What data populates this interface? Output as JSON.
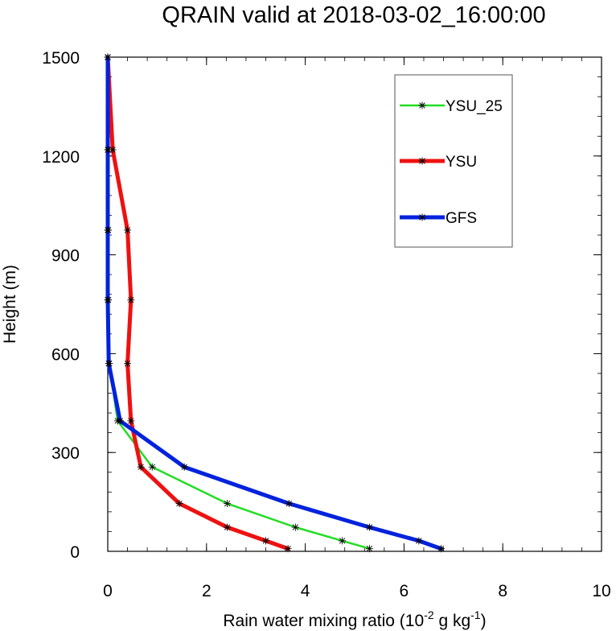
{
  "chart_data": {
    "type": "line",
    "title": "QRAIN valid at 2018-03-02_16:00:00",
    "xlabel_main": "Rain water mixing ratio (10",
    "xlabel_exp1": "-2",
    "xlabel_mid": " g kg",
    "xlabel_exp2": "-1",
    "xlabel_end": ")",
    "ylabel": "Height (m)",
    "xlim": [
      0,
      10
    ],
    "ylim": [
      0,
      1500
    ],
    "xticks": [
      0,
      2,
      4,
      6,
      8,
      10
    ],
    "yticks": [
      0,
      300,
      600,
      900,
      1200,
      1500
    ],
    "xtick_labels": [
      "0",
      "2",
      "4",
      "6",
      "8",
      "10"
    ],
    "ytick_labels": [
      "0",
      "300",
      "600",
      "900",
      "1200",
      "1500"
    ],
    "grid": false,
    "legend_position": "top-right",
    "series": [
      {
        "name": "YSU_25",
        "color": "#22dd22",
        "points": [
          [
            5.3,
            8
          ],
          [
            4.75,
            32
          ],
          [
            3.8,
            73
          ],
          [
            2.42,
            145
          ],
          [
            0.9,
            256
          ],
          [
            0.2,
            396
          ],
          [
            0.03,
            570
          ],
          [
            0.01,
            763
          ],
          [
            0.01,
            975
          ],
          [
            0.01,
            1219
          ],
          [
            0.0,
            1500
          ]
        ]
      },
      {
        "name": "YSU",
        "color": "#ee1111",
        "points": [
          [
            3.65,
            8
          ],
          [
            3.2,
            32
          ],
          [
            2.42,
            73
          ],
          [
            1.45,
            145
          ],
          [
            0.67,
            256
          ],
          [
            0.47,
            396
          ],
          [
            0.4,
            570
          ],
          [
            0.47,
            763
          ],
          [
            0.4,
            975
          ],
          [
            0.1,
            1219
          ],
          [
            0.0,
            1500
          ]
        ]
      },
      {
        "name": "GFS",
        "color": "#0022dd",
        "points": [
          [
            6.75,
            8
          ],
          [
            6.3,
            32
          ],
          [
            5.3,
            73
          ],
          [
            3.67,
            145
          ],
          [
            1.55,
            256
          ],
          [
            0.25,
            396
          ],
          [
            0.02,
            570
          ],
          [
            0.0,
            763
          ],
          [
            0.0,
            975
          ],
          [
            0.0,
            1219
          ],
          [
            0.0,
            1500
          ]
        ]
      }
    ]
  }
}
